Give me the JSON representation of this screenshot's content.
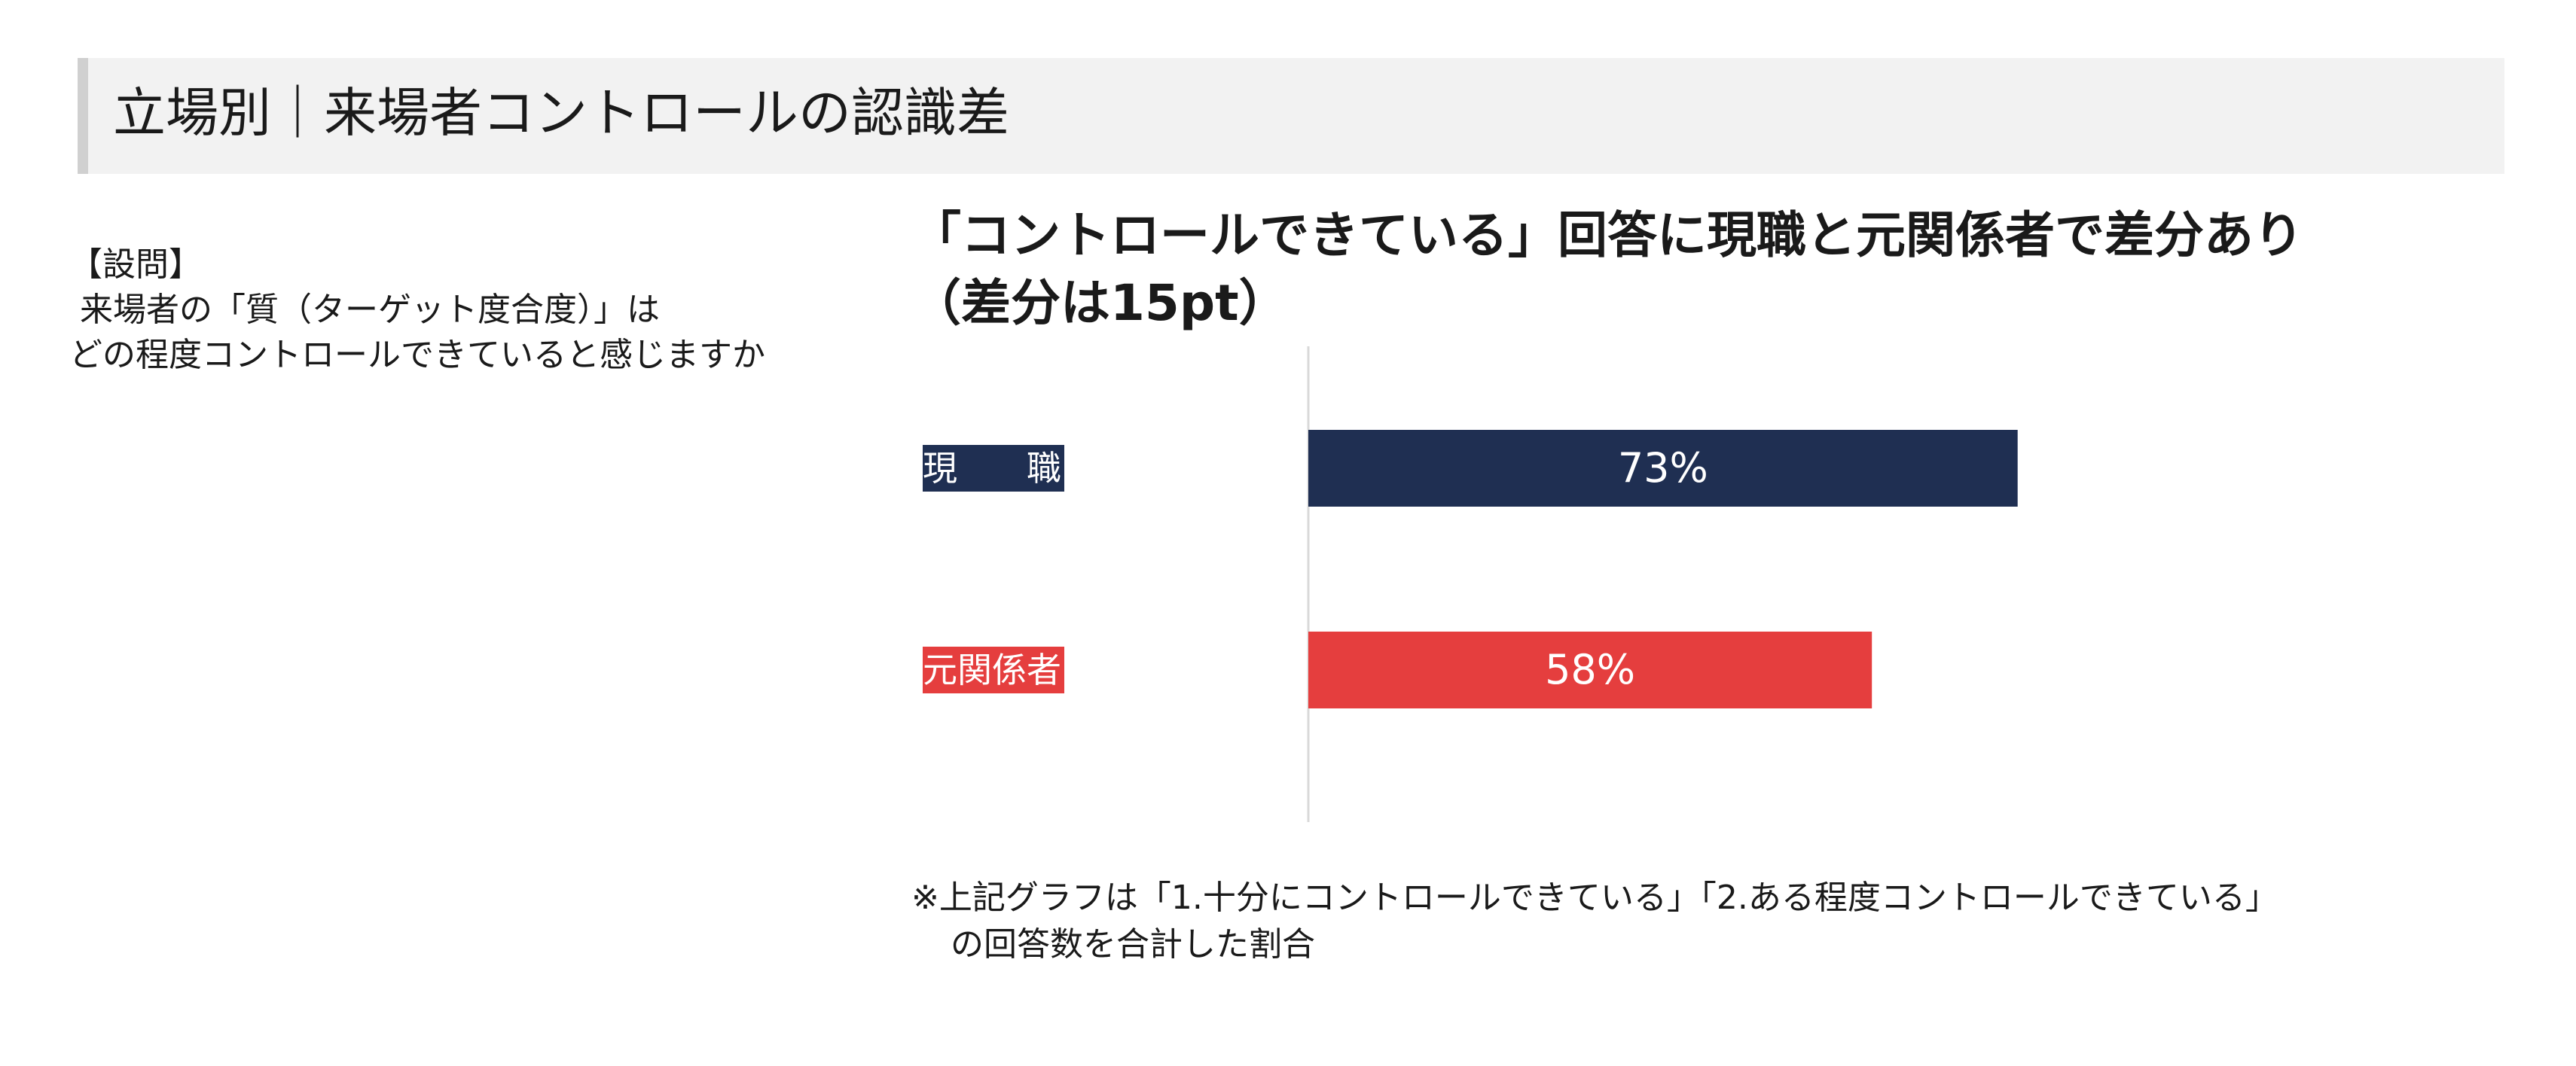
{
  "header": {
    "title": "立場別｜来場者コントロールの認識差"
  },
  "question": {
    "label": "【設問】",
    "line1": "来場者の「質（ターゲット度合度）」は",
    "line2": "どの程度コントロールできていると感じますか"
  },
  "chart_data": {
    "type": "bar",
    "orientation": "horizontal",
    "title_line1": "「コントロールできている」回答に現職と元関係者で差分あり",
    "title_line2": "（差分は15pt）",
    "categories": [
      "現　　職",
      "元関係者"
    ],
    "values": [
      73,
      58
    ],
    "value_labels": [
      "73%",
      "58%"
    ],
    "unit": "%",
    "xlim": [
      0,
      100
    ],
    "colors": [
      "#1f2f52",
      "#e53e3e"
    ],
    "label_text_color": "#ffffff",
    "grid": false,
    "legend": "none"
  },
  "footnote": {
    "line1": "※上記グラフは「1.十分にコントロールできている」「2.ある程度コントロールできている」",
    "line2": "の回答数を合計した割合"
  }
}
